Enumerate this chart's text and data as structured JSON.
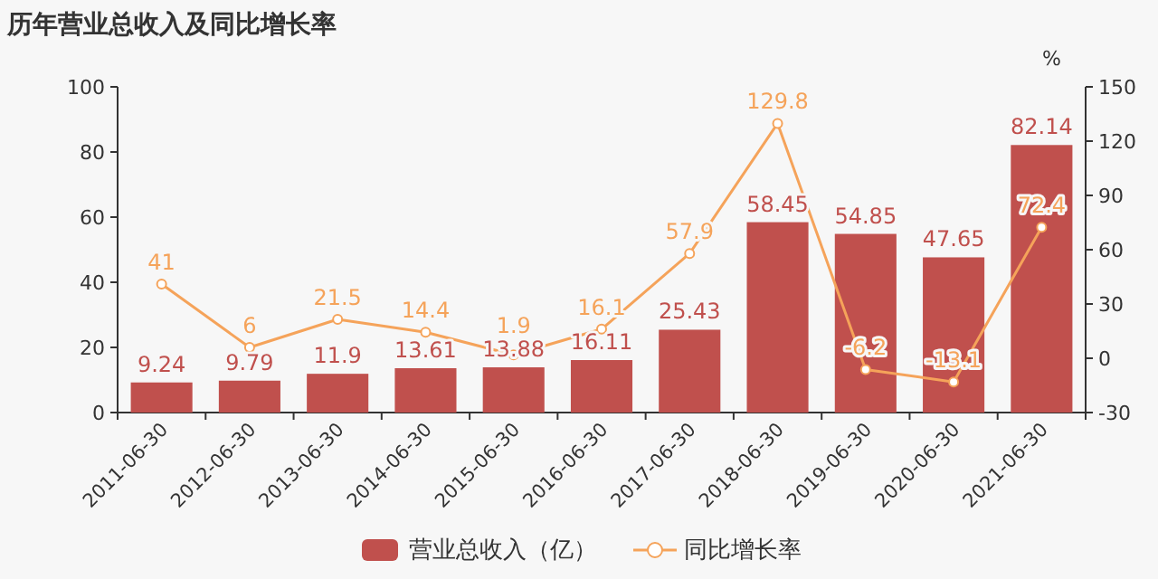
{
  "chart_data": {
    "type": "bar",
    "title": "历年营业总收入及同比增长率",
    "categories": [
      "2011-06-30",
      "2012-06-30",
      "2013-06-30",
      "2014-06-30",
      "2015-06-30",
      "2016-06-30",
      "2017-06-30",
      "2018-06-30",
      "2019-06-30",
      "2020-06-30",
      "2021-06-30"
    ],
    "series": [
      {
        "name": "营业总收入（亿）",
        "color": "#c0504d",
        "values": [
          9.24,
          9.79,
          11.9,
          13.61,
          13.88,
          16.11,
          25.43,
          58.45,
          54.85,
          47.65,
          82.14
        ]
      },
      {
        "name": "同比增长率",
        "type": "line",
        "axis": "y2",
        "color": "#f5a35a",
        "values": [
          41,
          6,
          21.5,
          14.4,
          1.9,
          16.1,
          57.9,
          129.8,
          -6.2,
          -13.1,
          72.4
        ]
      }
    ],
    "ylim": [
      0,
      100
    ],
    "yticks": [
      0,
      20,
      40,
      60,
      80,
      100
    ],
    "y2lim": [
      -30,
      150
    ],
    "y2ticks": [
      -30,
      0,
      30,
      60,
      90,
      120,
      150
    ],
    "y2label": "%",
    "data_labels": true,
    "legend": "bottom",
    "marker": "circle",
    "grid": false
  }
}
